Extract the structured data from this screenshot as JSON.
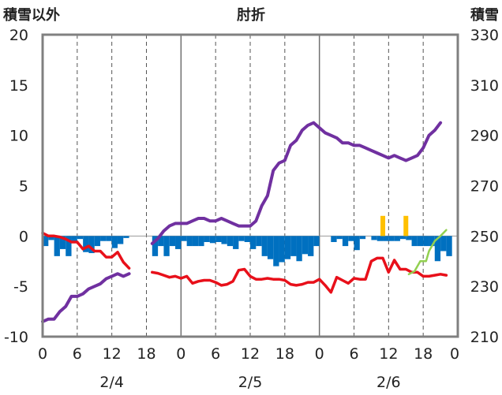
{
  "chart_data": {
    "type": "line",
    "title": "肘折",
    "left_axis_title": "積雪以外",
    "right_axis_title": "積雪",
    "left_ticks": [
      "20",
      "15",
      "10",
      "5",
      "0",
      "-5",
      "-10"
    ],
    "right_ticks": [
      "330",
      "310",
      "290",
      "270",
      "250",
      "230",
      "210"
    ],
    "x_ticks": [
      "0",
      "6",
      "12",
      "18",
      "0",
      "6",
      "12",
      "18",
      "0",
      "6",
      "12",
      "18",
      "0"
    ],
    "date_labels": [
      "2/4",
      "2/5",
      "2/6"
    ],
    "ylim_left": [
      -10,
      20
    ],
    "ylim_right": [
      210,
      330
    ],
    "x_range_hours": [
      0,
      72
    ],
    "grid": "dashed vertical lines every 6 h, solid at day boundaries",
    "colors": {
      "temperature": "#e8101a",
      "snow_depth": "#7030a0",
      "precipitation": "#0070c0",
      "sunshine": "#ffc000",
      "series_green": "#92d050",
      "frame": "#808080"
    },
    "temperature": [
      [
        0,
        0.3
      ],
      [
        1,
        0.0
      ],
      [
        2,
        0.0
      ],
      [
        3,
        -0.1
      ],
      [
        4,
        -0.3
      ],
      [
        5,
        -0.6
      ],
      [
        6,
        -0.6
      ],
      [
        7,
        -1.3
      ],
      [
        8,
        -1.0
      ],
      [
        9,
        -1.5
      ],
      [
        10,
        -1.5
      ],
      [
        11,
        -2.1
      ],
      [
        12,
        -2.1
      ],
      [
        13,
        -1.6
      ],
      [
        14,
        -2.6
      ],
      [
        15,
        -3.2
      ],
      null,
      [
        19,
        -3.6
      ],
      [
        20,
        -3.7
      ],
      [
        21,
        -3.9
      ],
      [
        22,
        -4.1
      ],
      [
        23,
        -4.0
      ],
      [
        24,
        -4.2
      ],
      [
        25,
        -4.0
      ],
      [
        26,
        -4.7
      ],
      [
        27,
        -4.5
      ],
      [
        28,
        -4.4
      ],
      [
        29,
        -4.4
      ],
      [
        30,
        -4.6
      ],
      [
        31,
        -4.9
      ],
      [
        32,
        -4.8
      ],
      [
        33,
        -4.5
      ],
      [
        34,
        -3.4
      ],
      [
        35,
        -3.3
      ],
      [
        36,
        -4.0
      ],
      [
        37,
        -4.3
      ],
      [
        38,
        -4.3
      ],
      [
        39,
        -4.2
      ],
      [
        40,
        -4.3
      ],
      [
        41,
        -4.3
      ],
      [
        42,
        -4.4
      ],
      [
        43,
        -4.8
      ],
      [
        44,
        -4.9
      ],
      [
        45,
        -4.8
      ],
      [
        46,
        -4.6
      ],
      [
        47,
        -4.6
      ],
      [
        48,
        -4.3
      ],
      [
        49,
        -4.9
      ],
      [
        50,
        -5.6
      ],
      [
        51,
        -4.1
      ],
      [
        52,
        -4.4
      ],
      [
        53,
        -4.7
      ],
      [
        54,
        -4.2
      ],
      [
        55,
        -4.3
      ],
      [
        56,
        -4.3
      ],
      [
        57,
        -2.5
      ],
      [
        58,
        -2.2
      ],
      [
        59,
        -2.2
      ],
      [
        60,
        -3.6
      ],
      [
        61,
        -2.4
      ],
      [
        62,
        -3.3
      ],
      [
        63,
        -3.3
      ],
      [
        64,
        -3.6
      ],
      [
        65,
        -3.6
      ],
      [
        66,
        -4.0
      ],
      [
        67,
        -4.0
      ],
      [
        68,
        -3.9
      ],
      [
        69,
        -3.8
      ],
      [
        70,
        -3.9
      ]
    ],
    "snow_depth": [
      [
        0,
        216
      ],
      [
        1,
        217
      ],
      [
        2,
        217
      ],
      [
        3,
        220
      ],
      [
        4,
        222
      ],
      [
        5,
        226
      ],
      [
        6,
        226
      ],
      [
        7,
        227
      ],
      [
        8,
        229
      ],
      [
        9,
        230
      ],
      [
        10,
        231
      ],
      [
        11,
        233
      ],
      [
        12,
        234
      ],
      [
        13,
        235
      ],
      [
        14,
        234
      ],
      [
        15,
        235
      ],
      null,
      [
        19,
        247
      ],
      [
        20,
        249
      ],
      [
        21,
        252
      ],
      [
        22,
        254
      ],
      [
        23,
        255
      ],
      [
        24,
        255
      ],
      [
        25,
        255
      ],
      [
        26,
        256
      ],
      [
        27,
        257
      ],
      [
        28,
        257
      ],
      [
        29,
        256
      ],
      [
        30,
        256
      ],
      [
        31,
        257
      ],
      [
        32,
        256
      ],
      [
        33,
        255
      ],
      [
        34,
        254
      ],
      [
        35,
        254
      ],
      [
        36,
        254
      ],
      [
        37,
        256
      ],
      [
        38,
        262
      ],
      [
        39,
        266
      ],
      [
        40,
        276
      ],
      [
        41,
        279
      ],
      [
        42,
        280
      ],
      [
        43,
        286
      ],
      [
        44,
        288
      ],
      [
        45,
        292
      ],
      [
        46,
        294
      ],
      [
        47,
        295
      ],
      [
        48,
        293
      ],
      [
        49,
        291
      ],
      [
        50,
        290
      ],
      [
        51,
        289
      ],
      [
        52,
        287
      ],
      [
        53,
        287
      ],
      [
        54,
        286
      ],
      [
        55,
        286
      ],
      [
        56,
        285
      ],
      [
        57,
        284
      ],
      [
        58,
        283
      ],
      [
        59,
        282
      ],
      [
        60,
        281
      ],
      [
        61,
        282
      ],
      [
        62,
        281
      ],
      [
        63,
        280
      ],
      [
        64,
        281
      ],
      [
        65,
        282
      ],
      [
        66,
        285
      ],
      [
        67,
        290
      ],
      [
        68,
        292
      ],
      [
        69,
        295
      ]
    ],
    "precipitation": [
      [
        0,
        -1.0
      ],
      [
        1,
        -0.4
      ],
      [
        2,
        -2.0
      ],
      [
        3,
        -1.3
      ],
      [
        4,
        -2.0
      ],
      [
        5,
        -0.6
      ],
      [
        6,
        -0.3
      ],
      [
        7,
        -1.6
      ],
      [
        8,
        -1.7
      ],
      [
        9,
        -1.0
      ],
      [
        10,
        -0.5
      ],
      [
        11,
        -0.5
      ],
      [
        12,
        -1.2
      ],
      [
        13,
        -0.8
      ],
      [
        14,
        -0.2
      ],
      [
        19,
        -2.0
      ],
      [
        20,
        -1.0
      ],
      [
        21,
        -2.0
      ],
      [
        22,
        -1.0
      ],
      [
        23,
        -1.3
      ],
      [
        24,
        -0.5
      ],
      [
        25,
        -1.0
      ],
      [
        26,
        -1.0
      ],
      [
        27,
        -1.0
      ],
      [
        28,
        -0.6
      ],
      [
        29,
        -0.7
      ],
      [
        30,
        -0.6
      ],
      [
        31,
        -0.8
      ],
      [
        32,
        -1.0
      ],
      [
        33,
        -1.3
      ],
      [
        34,
        -0.5
      ],
      [
        35,
        -0.6
      ],
      [
        36,
        -1.3
      ],
      [
        37,
        -1.0
      ],
      [
        38,
        -2.0
      ],
      [
        39,
        -2.3
      ],
      [
        40,
        -3.0
      ],
      [
        41,
        -2.6
      ],
      [
        42,
        -2.3
      ],
      [
        43,
        -2.0
      ],
      [
        44,
        -2.5
      ],
      [
        45,
        -1.8
      ],
      [
        46,
        -2.0
      ],
      [
        47,
        -1.0
      ],
      [
        50,
        -0.6
      ],
      [
        51,
        -0.3
      ],
      [
        52,
        -1.0
      ],
      [
        53,
        -0.5
      ],
      [
        54,
        -1.4
      ],
      [
        55,
        -0.3
      ],
      [
        57,
        -0.4
      ],
      [
        58,
        -0.5
      ],
      [
        59,
        -0.5
      ],
      [
        60,
        -0.5
      ],
      [
        61,
        -0.5
      ],
      [
        62,
        -0.3
      ],
      [
        63,
        -0.4
      ],
      [
        64,
        -1.0
      ],
      [
        65,
        -1.0
      ],
      [
        66,
        -1.0
      ],
      [
        67,
        -1.0
      ],
      [
        68,
        -2.5
      ],
      [
        69,
        -1.5
      ],
      [
        70,
        -2.0
      ]
    ],
    "sunshine": [
      [
        59,
        2.0
      ],
      [
        63,
        2.0
      ]
    ],
    "green_series": [
      [
        63.5,
        -3.8
      ],
      [
        64.5,
        -3.5
      ],
      [
        65.5,
        -2.5
      ],
      [
        66.5,
        -2.5
      ],
      [
        67,
        -1.5
      ],
      [
        68,
        -0.5
      ],
      [
        69,
        0.0
      ],
      [
        70,
        0.6
      ]
    ]
  }
}
